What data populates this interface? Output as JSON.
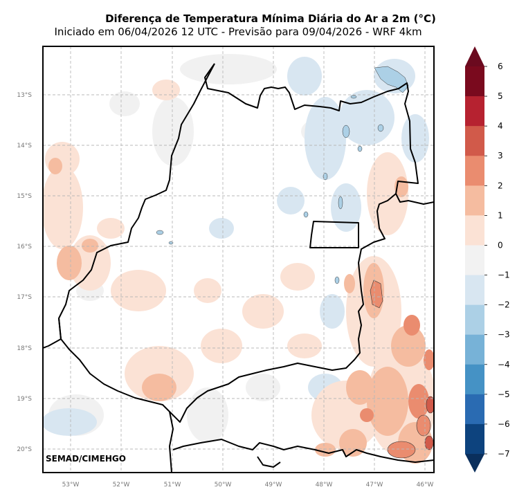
{
  "header": {
    "title": "Diferença de Temperatura Mínima Diária do Ar a 2m (°C)",
    "subtitle": "Iniciado em 06/04/2026 12 UTC - Previsão para 09/04/2026 - WRF 4km"
  },
  "map": {
    "lat_labels": [
      "13°S",
      "14°S",
      "15°S",
      "16°S",
      "17°S",
      "18°S",
      "19°S",
      "20°S"
    ],
    "lon_labels": [
      "53°W",
      "52°W",
      "51°W",
      "50°W",
      "49°W",
      "48°W",
      "47°W",
      "46°W"
    ],
    "lat_range": [
      -20.45,
      -12.05
    ],
    "lon_range": [
      -53.55,
      -45.85
    ],
    "grid": true,
    "credit": "SEMAD/CIMEHGO"
  },
  "colorbar": {
    "ticks": [
      "6",
      "5",
      "4",
      "3",
      "2",
      "1",
      "0",
      "−1",
      "−2",
      "−3",
      "−4",
      "−5",
      "−6",
      "−7"
    ],
    "colors": [
      "#67001f",
      "#b2182b",
      "#d6604d",
      "#f4a582",
      "#fddbc7",
      "#f2f2f2",
      "#d1e5f0",
      "#92c5de",
      "#4393c3",
      "#2166ac",
      "#053061"
    ],
    "colors_full": [
      "#7a0a1e",
      "#b62230",
      "#d15a4a",
      "#ea8c6f",
      "#f5bca0",
      "#fbe2d5",
      "#f2f2f2",
      "#d8e6f1",
      "#acd0e6",
      "#77b2d7",
      "#4592c5",
      "#2a6bb2",
      "#0d437e"
    ],
    "extend_top": "#6b0a1f",
    "extend_bottom": "#0a2f5c"
  }
}
